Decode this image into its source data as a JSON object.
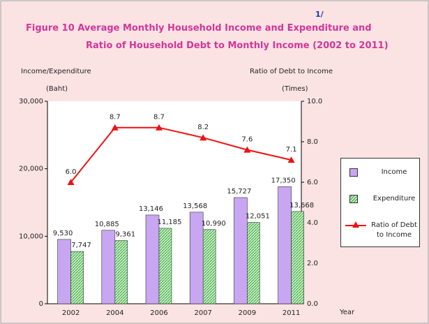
{
  "chart_data": {
    "type": "bar-line",
    "title": "Figure  10  Average Monthly Household Income and Expenditure and",
    "subtitle": "Ratio of Household Debt to Monthly Income (2002 to 2011)",
    "title_note": "1/",
    "y_label": "Income/Expenditure",
    "y_unit": "(Baht)",
    "y2_label": "Ratio of Debt to Income",
    "y2_unit": "(Times)",
    "x_label": "Year",
    "categories": [
      "2002",
      "2004",
      "2006",
      "2007",
      "2009",
      "2011"
    ],
    "series": [
      {
        "name": "Income",
        "type": "bar",
        "color": "#c8a6f2",
        "values": [
          9530,
          10885,
          13146,
          13568,
          15727,
          17350
        ],
        "value_labels": [
          "9,530",
          "10,885",
          "13,146",
          "13,568",
          "15,727",
          "17,350"
        ]
      },
      {
        "name": "Expenditure",
        "type": "bar",
        "color": "#8fdc8f",
        "values": [
          7747,
          9361,
          11185,
          10990,
          12051,
          13668
        ],
        "value_labels": [
          "7,747",
          "9,361",
          "11,185",
          "10,990",
          "12,051",
          "13,668"
        ]
      },
      {
        "name": "Ratio of Debt to Income",
        "type": "line",
        "axis": "y2",
        "color": "#ee1111",
        "values": [
          6.0,
          8.7,
          8.7,
          8.2,
          7.6,
          7.1
        ],
        "value_labels": [
          "6.0",
          "8.7",
          "8.7",
          "8.2",
          "7.6",
          "7.1"
        ]
      }
    ],
    "ylim": [
      0,
      30000
    ],
    "yticks": [
      0,
      {
        "value": 10000,
        "label": "10,000"
      },
      {
        "value": 20000,
        "label": "20,000"
      },
      {
        "value": 30000,
        "label": "30,000"
      }
    ],
    "y2lim": [
      0,
      10
    ],
    "y2ticks": [
      {
        "value": 0,
        "label": "0.0"
      },
      {
        "value": 2,
        "label": "2.0"
      },
      {
        "value": 4,
        "label": "4.0"
      },
      {
        "value": 6,
        "label": "6.0"
      },
      {
        "value": 8,
        "label": "8.0"
      },
      {
        "value": 10,
        "label": "10.0"
      }
    ],
    "legend": "right"
  }
}
